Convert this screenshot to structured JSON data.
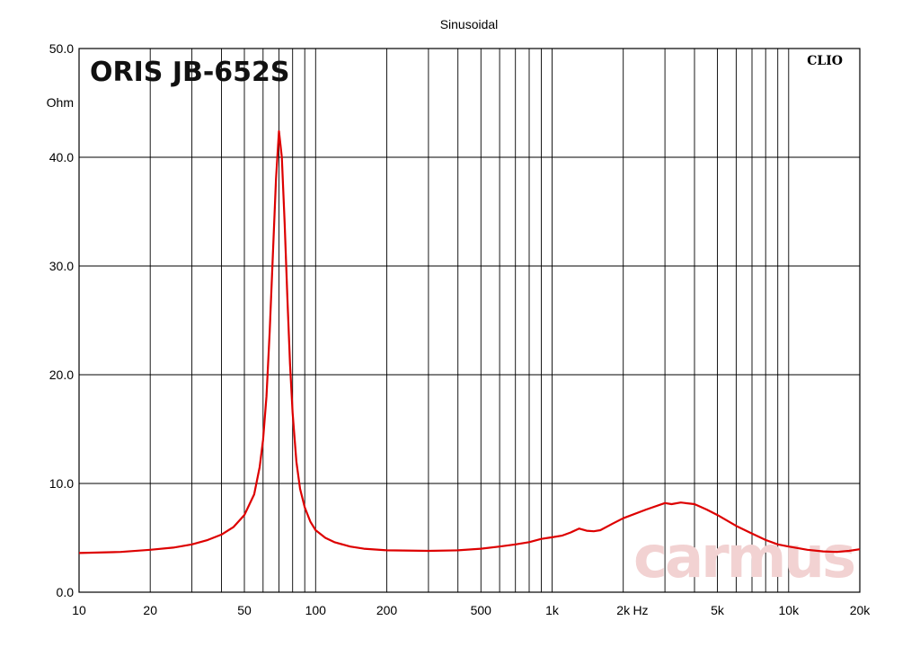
{
  "chart_data": {
    "type": "line",
    "title": "Sinusoidal",
    "product_label": "ORIS JB-652S",
    "software_label": "CLIO",
    "watermark": "carmus",
    "xlabel": "Hz",
    "ylabel": "Ohm",
    "x_scale": "log",
    "xlim": [
      10,
      20000
    ],
    "ylim": [
      0,
      50
    ],
    "grid": true,
    "x_ticks": [
      {
        "value": 10,
        "label": "10"
      },
      {
        "value": 20,
        "label": "20"
      },
      {
        "value": 50,
        "label": "50"
      },
      {
        "value": 100,
        "label": "100"
      },
      {
        "value": 200,
        "label": "200"
      },
      {
        "value": 500,
        "label": "500"
      },
      {
        "value": 1000,
        "label": "1k"
      },
      {
        "value": 2000,
        "label": "2k"
      },
      {
        "value": 5000,
        "label": "5k"
      },
      {
        "value": 10000,
        "label": "10k"
      },
      {
        "value": 20000,
        "label": "20k"
      }
    ],
    "y_ticks": [
      {
        "value": 0,
        "label": "0.0"
      },
      {
        "value": 10,
        "label": "10.0"
      },
      {
        "value": 20,
        "label": "20.0"
      },
      {
        "value": 30,
        "label": "30.0"
      },
      {
        "value": 40,
        "label": "40.0"
      },
      {
        "value": 50,
        "label": "50.0"
      }
    ],
    "series": [
      {
        "color": "#dd0000",
        "points": [
          [
            10,
            3.6
          ],
          [
            15,
            3.7
          ],
          [
            20,
            3.9
          ],
          [
            25,
            4.1
          ],
          [
            30,
            4.4
          ],
          [
            35,
            4.8
          ],
          [
            40,
            5.3
          ],
          [
            45,
            6.0
          ],
          [
            50,
            7.1
          ],
          [
            55,
            9.0
          ],
          [
            58,
            11.5
          ],
          [
            60,
            14.0
          ],
          [
            62,
            18.0
          ],
          [
            64,
            24.0
          ],
          [
            66,
            31.0
          ],
          [
            68,
            38.0
          ],
          [
            70,
            42.4
          ],
          [
            72,
            40.0
          ],
          [
            74,
            34.0
          ],
          [
            76,
            27.0
          ],
          [
            78,
            21.0
          ],
          [
            80,
            16.5
          ],
          [
            83,
            12.0
          ],
          [
            86,
            9.5
          ],
          [
            90,
            7.8
          ],
          [
            95,
            6.5
          ],
          [
            100,
            5.7
          ],
          [
            110,
            5.0
          ],
          [
            120,
            4.6
          ],
          [
            140,
            4.2
          ],
          [
            160,
            4.0
          ],
          [
            200,
            3.85
          ],
          [
            300,
            3.8
          ],
          [
            400,
            3.85
          ],
          [
            500,
            4.0
          ],
          [
            600,
            4.2
          ],
          [
            700,
            4.4
          ],
          [
            800,
            4.6
          ],
          [
            900,
            4.9
          ],
          [
            1000,
            5.05
          ],
          [
            1100,
            5.2
          ],
          [
            1200,
            5.5
          ],
          [
            1300,
            5.85
          ],
          [
            1400,
            5.65
          ],
          [
            1500,
            5.6
          ],
          [
            1600,
            5.7
          ],
          [
            1800,
            6.3
          ],
          [
            2000,
            6.8
          ],
          [
            2500,
            7.6
          ],
          [
            3000,
            8.2
          ],
          [
            3200,
            8.1
          ],
          [
            3500,
            8.25
          ],
          [
            4000,
            8.1
          ],
          [
            4500,
            7.6
          ],
          [
            5000,
            7.1
          ],
          [
            6000,
            6.1
          ],
          [
            7000,
            5.4
          ],
          [
            8000,
            4.8
          ],
          [
            9000,
            4.4
          ],
          [
            10000,
            4.2
          ],
          [
            12000,
            3.9
          ],
          [
            14000,
            3.75
          ],
          [
            16000,
            3.7
          ],
          [
            18000,
            3.8
          ],
          [
            20000,
            3.95
          ]
        ]
      }
    ]
  }
}
